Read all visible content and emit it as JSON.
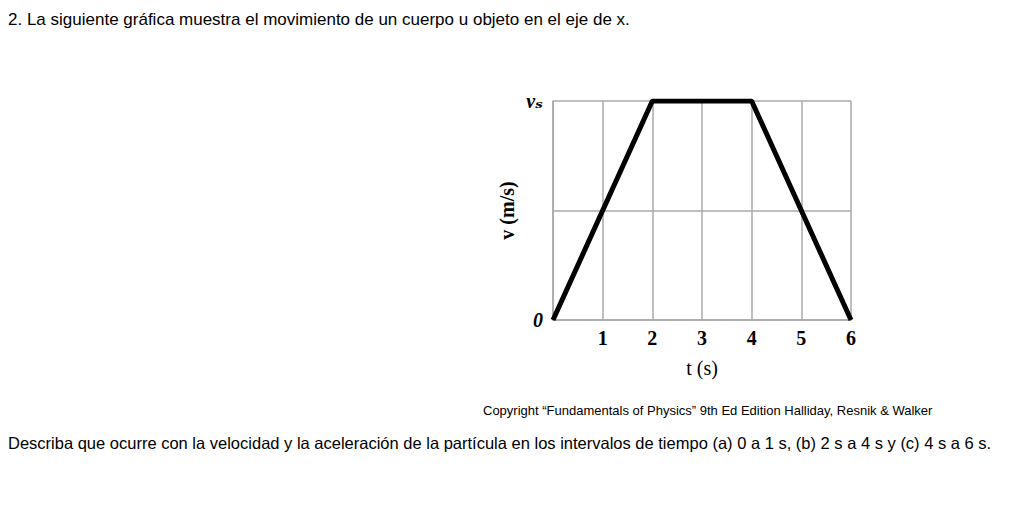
{
  "question": "2. La siguiente gráfica muestra el movimiento de un cuerpo u objeto en el eje de x.",
  "copyright": "Copyright “Fundamentals of Physics” 9th Ed Edition Halliday, Resnik & Walker",
  "prompt": "Describa que ocurre con la velocidad y la aceleración de la partícula en los intervalos de tiempo (a) 0 a 1 s, (b) 2 s a 4 s y (c) 4 s a 6 s.",
  "chart_data": {
    "type": "line",
    "x_label": "t (s)",
    "y_label": "v (m/s)",
    "x": [
      0,
      2,
      4,
      6
    ],
    "values": [
      0,
      2,
      2,
      0
    ],
    "color": "#000000",
    "xlim": [
      0,
      6
    ],
    "xticks": [
      1,
      2,
      3,
      4,
      5,
      6
    ],
    "ylim": [
      0,
      2
    ],
    "yticks": [
      0,
      {
        "value": 1,
        "label": null
      },
      {
        "value": 2,
        "label": "vₛ"
      }
    ],
    "grid": true
  }
}
